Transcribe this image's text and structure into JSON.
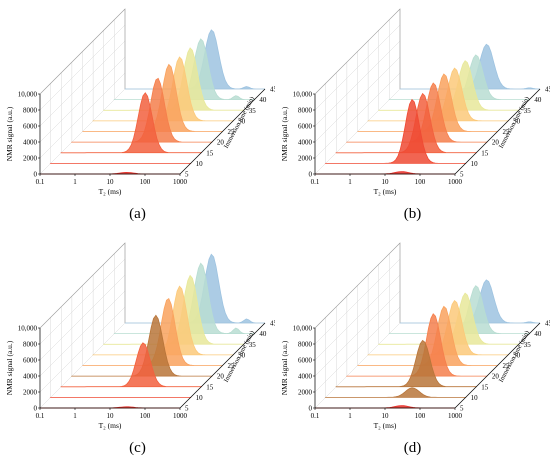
{
  "chart_data": [
    {
      "type": "area",
      "panel_label": "(a)",
      "xlabel": "T₂ (ms)",
      "ylabel": "NMR signal (a.u.)",
      "zlabel": "Immersion time (min)",
      "x_ticks": [
        "0.1",
        "1",
        "10",
        "100",
        "1000"
      ],
      "y_ticks": [
        "0",
        "2000",
        "4000",
        "6000",
        "8000",
        "10,000"
      ],
      "z_ticks": [
        "5",
        "10",
        "15",
        "20",
        "25",
        "30",
        "35",
        "40",
        "45"
      ],
      "ylim": [
        0,
        10000
      ],
      "x_scale": "log",
      "series": [
        {
          "z": "5",
          "peak_T2": 30,
          "peak_amp": 200,
          "color": "#e8312a"
        },
        {
          "z": "10",
          "peak_T2": 30,
          "peak_amp": 0,
          "color": "#ef4a34"
        },
        {
          "z": "15",
          "peak_T2": 25,
          "peak_amp": 7500,
          "color": "#f2603e"
        },
        {
          "z": "20",
          "peak_T2": 28,
          "peak_amp": 8000,
          "color": "#f57f4c"
        },
        {
          "z": "25",
          "peak_T2": 30,
          "peak_amp": 8400,
          "color": "#f9a25e"
        },
        {
          "z": "30",
          "peak_T2": 30,
          "peak_amp": 8000,
          "color": "#fbc97a"
        },
        {
          "z": "35",
          "peak_T2": 30,
          "peak_amp": 7800,
          "color": "#e8e89a"
        },
        {
          "z": "40",
          "peak_T2": 30,
          "peak_amp": 7600,
          "color": "#b8ddd2",
          "secondary_T2": 300,
          "secondary_amp": 500
        },
        {
          "z": "45",
          "peak_T2": 30,
          "peak_amp": 7400,
          "color": "#9ec3e0",
          "secondary_T2": 300,
          "secondary_amp": 300
        }
      ]
    },
    {
      "type": "area",
      "panel_label": "(b)",
      "xlabel": "T₂ (ms)",
      "ylabel": "NMR signal (a.u.)",
      "zlabel": "Immersion time (min)",
      "x_ticks": [
        "0.1",
        "1",
        "10",
        "100",
        "1000"
      ],
      "y_ticks": [
        "0",
        "2000",
        "4000",
        "6000",
        "8000",
        "10,000"
      ],
      "z_ticks": [
        "5",
        "10",
        "15",
        "20",
        "25",
        "30",
        "35",
        "40",
        "45"
      ],
      "ylim": [
        0,
        10000
      ],
      "x_scale": "log",
      "series": [
        {
          "z": "5",
          "peak_T2": 30,
          "peak_amp": 300,
          "color": "#e8312a"
        },
        {
          "z": "10",
          "peak_T2": 30,
          "peak_amp": 8000,
          "color": "#ef4a34"
        },
        {
          "z": "15",
          "peak_T2": 30,
          "peak_amp": 7400,
          "color": "#f2603e"
        },
        {
          "z": "20",
          "peak_T2": 30,
          "peak_amp": 7400,
          "color": "#f57f4c"
        },
        {
          "z": "25",
          "peak_T2": 30,
          "peak_amp": 7200,
          "color": "#f9a25e"
        },
        {
          "z": "30",
          "peak_T2": 30,
          "peak_amp": 6600,
          "color": "#fbc97a"
        },
        {
          "z": "35",
          "peak_T2": 30,
          "peak_amp": 6200,
          "color": "#e8e89a"
        },
        {
          "z": "40",
          "peak_T2": 30,
          "peak_amp": 5600,
          "color": "#b8ddd2"
        },
        {
          "z": "45",
          "peak_T2": 30,
          "peak_amp": 5600,
          "color": "#9ec3e0",
          "secondary_T2": 500,
          "secondary_amp": 150
        }
      ]
    },
    {
      "type": "area",
      "panel_label": "(c)",
      "xlabel": "T₂ (ms)",
      "ylabel": "NMR signal (a.u.)",
      "zlabel": "Immersion time (min)",
      "x_ticks": [
        "0.1",
        "1",
        "10",
        "100",
        "1000"
      ],
      "y_ticks": [
        "0",
        "2000",
        "4000",
        "6000",
        "8000",
        "10,000"
      ],
      "z_ticks": [
        "5",
        "10",
        "15",
        "20",
        "25",
        "30",
        "35",
        "40",
        "45"
      ],
      "ylim": [
        0,
        10000
      ],
      "x_scale": "log",
      "series": [
        {
          "z": "5",
          "peak_T2": 30,
          "peak_amp": 150,
          "color": "#e8312a"
        },
        {
          "z": "10",
          "peak_T2": 30,
          "peak_amp": 0,
          "color": "#ef4a34"
        },
        {
          "z": "15",
          "peak_T2": 22,
          "peak_amp": 5500,
          "color": "#f2603e"
        },
        {
          "z": "20",
          "peak_T2": 25,
          "peak_amp": 7600,
          "color": "#b8753a"
        },
        {
          "z": "25",
          "peak_T2": 28,
          "peak_amp": 8400,
          "color": "#f9a25e"
        },
        {
          "z": "30",
          "peak_T2": 30,
          "peak_amp": 8600,
          "color": "#fbc97a"
        },
        {
          "z": "35",
          "peak_T2": 30,
          "peak_amp": 8600,
          "color": "#e8e89a"
        },
        {
          "z": "40",
          "peak_T2": 30,
          "peak_amp": 8800,
          "color": "#b8ddd2",
          "secondary_T2": 300,
          "secondary_amp": 700
        },
        {
          "z": "45",
          "peak_T2": 30,
          "peak_amp": 8600,
          "color": "#9ec3e0",
          "secondary_T2": 300,
          "secondary_amp": 500
        }
      ]
    },
    {
      "type": "area",
      "panel_label": "(d)",
      "xlabel": "T₂ (ms)",
      "ylabel": "NMR signal (a.u.)",
      "zlabel": "Immersion time (min)",
      "x_ticks": [
        "0.1",
        "1",
        "10",
        "100",
        "1000"
      ],
      "y_ticks": [
        "0",
        "2000",
        "4000",
        "6000",
        "8000",
        "10,000"
      ],
      "z_ticks": [
        "5",
        "10",
        "15",
        "20",
        "25",
        "30",
        "35",
        "40",
        "45"
      ],
      "ylim": [
        0,
        10000
      ],
      "x_scale": "log",
      "series": [
        {
          "z": "5",
          "peak_T2": 30,
          "peak_amp": 300,
          "color": "#e8312a"
        },
        {
          "z": "10",
          "peak_T2": 30,
          "peak_amp": 1200,
          "color": "#b8753a"
        },
        {
          "z": "15",
          "peak_T2": 30,
          "peak_amp": 5800,
          "color": "#b8753a"
        },
        {
          "z": "20",
          "peak_T2": 30,
          "peak_amp": 7800,
          "color": "#f57f4c"
        },
        {
          "z": "25",
          "peak_T2": 30,
          "peak_amp": 7400,
          "color": "#f9a25e"
        },
        {
          "z": "30",
          "peak_T2": 30,
          "peak_amp": 6800,
          "color": "#fbc97a"
        },
        {
          "z": "35",
          "peak_T2": 30,
          "peak_amp": 6400,
          "color": "#e8e89a"
        },
        {
          "z": "40",
          "peak_T2": 30,
          "peak_amp": 6000,
          "color": "#b8ddd2"
        },
        {
          "z": "45",
          "peak_T2": 30,
          "peak_amp": 5400,
          "color": "#9ec3e0",
          "secondary_T2": 500,
          "secondary_amp": 150
        }
      ]
    }
  ]
}
